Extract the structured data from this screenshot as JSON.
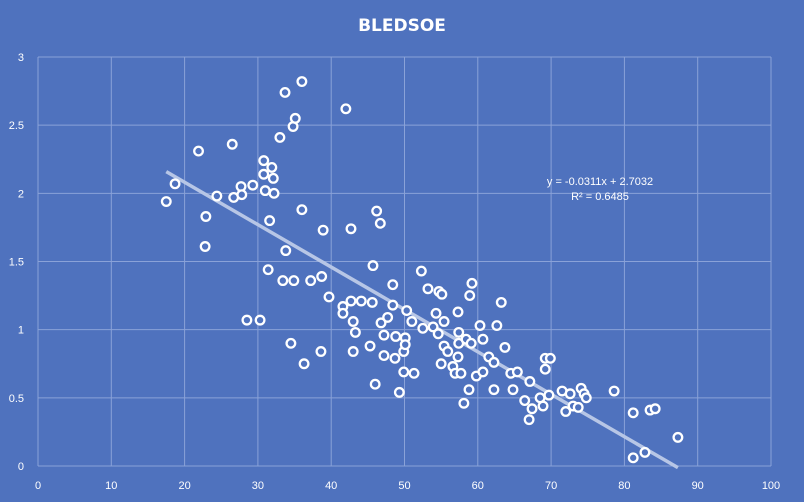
{
  "chart_data": {
    "type": "scatter",
    "title": "BLEDSOE",
    "xlabel": "",
    "ylabel": "",
    "xlim": [
      0,
      100
    ],
    "ylim": [
      0,
      3
    ],
    "x_ticks": [
      0,
      10,
      20,
      30,
      40,
      50,
      60,
      70,
      80,
      90,
      100
    ],
    "y_ticks": [
      0,
      0.5,
      1,
      1.5,
      2,
      2.5,
      3
    ],
    "x_tick_labels": [
      "0",
      "10",
      "20",
      "30",
      "40",
      "50",
      "60",
      "70",
      "80",
      "90",
      "100"
    ],
    "y_tick_labels": [
      "0",
      "0.5",
      "1",
      "1.5",
      "2",
      "2.5",
      "3"
    ],
    "grid": true,
    "legend": "none",
    "trendline": {
      "type": "linear",
      "slope": -0.0311,
      "intercept": 2.7032,
      "x_range": [
        17.5,
        87.3
      ],
      "equation_label": "y = -0.0311x + 2.7032",
      "r2_label": "R² = 0.6485"
    },
    "colors": {
      "background": "#4f72be",
      "marker": "#ffffff",
      "trendline": "#b7c6e6"
    },
    "points": [
      [
        17.5,
        1.94
      ],
      [
        18.7,
        2.07
      ],
      [
        21.9,
        2.31
      ],
      [
        22.9,
        1.83
      ],
      [
        22.8,
        1.61
      ],
      [
        24.4,
        1.98
      ],
      [
        26.5,
        2.36
      ],
      [
        26.7,
        1.97
      ],
      [
        27.7,
        2.05
      ],
      [
        27.8,
        1.99
      ],
      [
        29.3,
        2.06
      ],
      [
        30.8,
        2.24
      ],
      [
        30.8,
        2.14
      ],
      [
        31.0,
        2.02
      ],
      [
        31.9,
        2.19
      ],
      [
        32.1,
        2.11
      ],
      [
        32.2,
        2.0
      ],
      [
        31.6,
        1.8
      ],
      [
        33.0,
        2.41
      ],
      [
        33.7,
        2.74
      ],
      [
        34.8,
        2.49
      ],
      [
        35.1,
        2.55
      ],
      [
        36.0,
        2.82
      ],
      [
        36.0,
        1.88
      ],
      [
        33.8,
        1.58
      ],
      [
        31.4,
        1.44
      ],
      [
        33.4,
        1.36
      ],
      [
        34.9,
        1.36
      ],
      [
        37.2,
        1.36
      ],
      [
        38.7,
        1.39
      ],
      [
        28.5,
        1.07
      ],
      [
        30.3,
        1.07
      ],
      [
        34.5,
        0.9
      ],
      [
        36.3,
        0.75
      ],
      [
        38.6,
        0.84
      ],
      [
        38.9,
        1.73
      ],
      [
        42.0,
        2.62
      ],
      [
        42.7,
        1.74
      ],
      [
        39.7,
        1.24
      ],
      [
        41.6,
        1.17
      ],
      [
        41.6,
        1.12
      ],
      [
        42.7,
        1.21
      ],
      [
        43.0,
        1.06
      ],
      [
        43.3,
        0.98
      ],
      [
        43.0,
        0.84
      ],
      [
        44.1,
        1.21
      ],
      [
        45.6,
        1.2
      ],
      [
        45.7,
        1.47
      ],
      [
        46.2,
        1.87
      ],
      [
        46.7,
        1.78
      ],
      [
        45.3,
        0.88
      ],
      [
        46.0,
        0.6
      ],
      [
        46.8,
        1.05
      ],
      [
        47.2,
        0.96
      ],
      [
        47.2,
        0.81
      ],
      [
        47.7,
        1.09
      ],
      [
        48.4,
        1.33
      ],
      [
        48.4,
        1.18
      ],
      [
        48.8,
        0.95
      ],
      [
        48.7,
        0.79
      ],
      [
        49.3,
        0.54
      ],
      [
        49.9,
        0.84
      ],
      [
        50.1,
        0.94
      ],
      [
        50.1,
        0.89
      ],
      [
        49.9,
        0.69
      ],
      [
        50.3,
        1.14
      ],
      [
        51.3,
        0.68
      ],
      [
        51.0,
        1.06
      ],
      [
        52.3,
        1.43
      ],
      [
        52.5,
        1.01
      ],
      [
        53.2,
        1.3
      ],
      [
        53.9,
        1.02
      ],
      [
        54.3,
        1.12
      ],
      [
        54.7,
        1.28
      ],
      [
        55.1,
        1.26
      ],
      [
        54.6,
        0.97
      ],
      [
        55.4,
        1.06
      ],
      [
        55.4,
        0.88
      ],
      [
        55.0,
        0.75
      ],
      [
        55.9,
        0.84
      ],
      [
        56.6,
        0.73
      ],
      [
        56.9,
        0.68
      ],
      [
        57.3,
        1.13
      ],
      [
        57.4,
        0.98
      ],
      [
        57.4,
        0.9
      ],
      [
        57.3,
        0.8
      ],
      [
        57.7,
        0.68
      ],
      [
        58.4,
        0.93
      ],
      [
        58.9,
        1.25
      ],
      [
        59.2,
        1.34
      ],
      [
        59.1,
        0.9
      ],
      [
        58.1,
        0.46
      ],
      [
        58.8,
        0.56
      ],
      [
        59.8,
        0.66
      ],
      [
        60.3,
        1.03
      ],
      [
        60.7,
        0.69
      ],
      [
        60.7,
        0.93
      ],
      [
        61.5,
        0.8
      ],
      [
        62.2,
        0.76
      ],
      [
        62.6,
        1.03
      ],
      [
        62.2,
        0.56
      ],
      [
        63.2,
        1.2
      ],
      [
        63.7,
        0.87
      ],
      [
        64.5,
        0.68
      ],
      [
        64.8,
        0.56
      ],
      [
        65.4,
        0.69
      ],
      [
        66.4,
        0.48
      ],
      [
        67.1,
        0.62
      ],
      [
        67.4,
        0.42
      ],
      [
        67.0,
        0.34
      ],
      [
        68.5,
        0.5
      ],
      [
        68.9,
        0.44
      ],
      [
        69.2,
        0.71
      ],
      [
        69.2,
        0.79
      ],
      [
        69.9,
        0.79
      ],
      [
        69.7,
        0.52
      ],
      [
        71.5,
        0.55
      ],
      [
        72.0,
        0.4
      ],
      [
        72.6,
        0.53
      ],
      [
        73.0,
        0.44
      ],
      [
        73.7,
        0.43
      ],
      [
        74.1,
        0.57
      ],
      [
        74.5,
        0.53
      ],
      [
        74.8,
        0.5
      ],
      [
        78.6,
        0.55
      ],
      [
        81.2,
        0.39
      ],
      [
        81.2,
        0.06
      ],
      [
        82.8,
        0.1
      ],
      [
        83.5,
        0.41
      ],
      [
        84.2,
        0.42
      ],
      [
        87.3,
        0.21
      ]
    ]
  }
}
